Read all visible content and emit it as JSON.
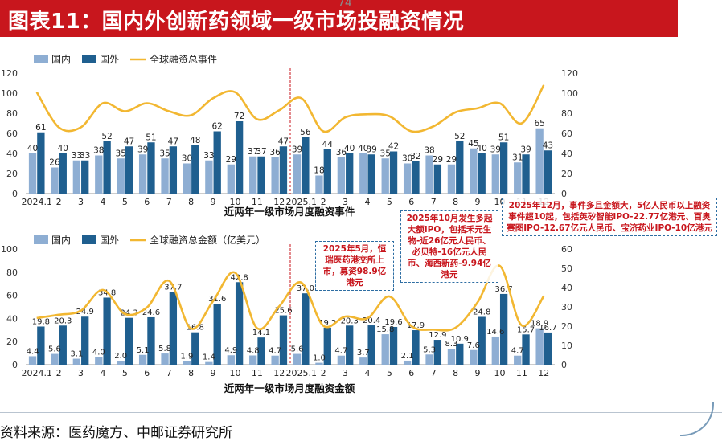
{
  "title": "图表11：国内外创新药领域一级市场投融资情况",
  "title_overlay": "74",
  "source": "资料来源：医药魔方、中邮证券研究所",
  "colors": {
    "domestic": "#8eaed3",
    "foreign": "#1f5f8f",
    "line": "#f2b731",
    "red": "#c8161d"
  },
  "chart_data": [
    {
      "type": "bar",
      "title": "近两年一级市场月度融资事件",
      "categories": [
        "2024.1",
        "2",
        "3",
        "4",
        "5",
        "6",
        "7",
        "8",
        "9",
        "10",
        "11",
        "12",
        "2025.1",
        "2",
        "3",
        "4",
        "5",
        "6",
        "7",
        "8",
        "9",
        "10",
        "11",
        "12"
      ],
      "series": [
        {
          "name": "国内",
          "values": [
            40,
            26,
            33,
            38,
            35,
            39,
            35,
            30,
            33,
            29,
            37,
            36,
            39,
            18,
            36,
            40,
            35,
            30,
            38,
            29,
            45,
            39,
            31,
            65
          ]
        },
        {
          "name": "国外",
          "values": [
            61,
            40,
            33,
            52,
            47,
            51,
            47,
            48,
            62,
            72,
            37,
            47,
            56,
            44,
            40,
            39,
            42,
            32,
            29,
            52,
            40,
            51,
            39,
            43
          ]
        },
        {
          "name": "全球融资总事件",
          "values": [
            101,
            66,
            66,
            90,
            82,
            90,
            82,
            78,
            95,
            101,
            74,
            83,
            95,
            62,
            76,
            79,
            77,
            62,
            67,
            81,
            85,
            90,
            70,
            108
          ]
        }
      ],
      "legend": [
        "国内",
        "国外",
        "全球融资总事件"
      ],
      "ylim_left": [
        0,
        120
      ],
      "ylim_right": [
        0,
        120
      ],
      "yticks": [
        0,
        20,
        40,
        60,
        80,
        100,
        120
      ]
    },
    {
      "type": "bar",
      "title": "近两年一级市场月度融资金额",
      "categories": [
        "2024.1",
        "2",
        "3",
        "4",
        "5",
        "6",
        "7",
        "8",
        "9",
        "10",
        "11",
        "12",
        "2025.1",
        "2",
        "3",
        "4",
        "5",
        "6",
        "7",
        "8",
        "9",
        "10",
        "11",
        "12"
      ],
      "series": [
        {
          "name": "国内",
          "values": [
            4.4,
            5.6,
            3.1,
            4.0,
            2.0,
            5.1,
            5.8,
            1.9,
            1.4,
            4.9,
            4.8,
            4.7,
            5.6,
            1.0,
            4.7,
            3.7,
            15.8,
            2.1,
            5.3,
            8.3,
            7.6,
            14.6,
            4.7,
            18.9
          ]
        },
        {
          "name": "国外",
          "values": [
            19.8,
            20.3,
            24.9,
            34.8,
            24.3,
            24.6,
            37.7,
            16.8,
            31.6,
            42.8,
            14.1,
            25.6,
            37.0,
            19.2,
            20.3,
            20.4,
            19.6,
            17.9,
            12.9,
            10.9,
            24.8,
            36.7,
            15.7,
            16.7
          ]
        },
        {
          "name": "全球融资总金额（亿美元）",
          "values": [
            24.2,
            25.9,
            28.0,
            38.8,
            26.3,
            29.7,
            43.5,
            18.7,
            33.0,
            47.7,
            18.9,
            30.3,
            42.6,
            20.2,
            25.0,
            24.1,
            35.4,
            20.0,
            18.2,
            19.2,
            32.4,
            51.3,
            20.4,
            35.6
          ]
        }
      ],
      "legend": [
        "国内",
        "国外",
        "全球融资总金额（亿美元）"
      ],
      "ylim_left": [
        0,
        100
      ],
      "yticks_left": [
        0,
        20,
        40,
        60,
        80,
        100
      ],
      "ylim_right": [
        0,
        60
      ],
      "yticks_right": [
        0,
        10,
        20,
        30,
        40,
        50,
        60
      ],
      "annotations": [
        "2025年5月，恒瑞医药港交所上市，募资98.9亿港元",
        "2025年10月发生多起大额IPO，包括禾元生物-近26亿元人民币、必贝特-16亿元人民币、海西新药-9.94亿港元",
        "2025年12月，事件多且金额大，5亿人民币以上融资事件超10起，包括英矽智能IPO-22.77亿港元、百奥赛图IPO-12.67亿元人民币、宝济药业IPO-10亿港元"
      ]
    }
  ]
}
